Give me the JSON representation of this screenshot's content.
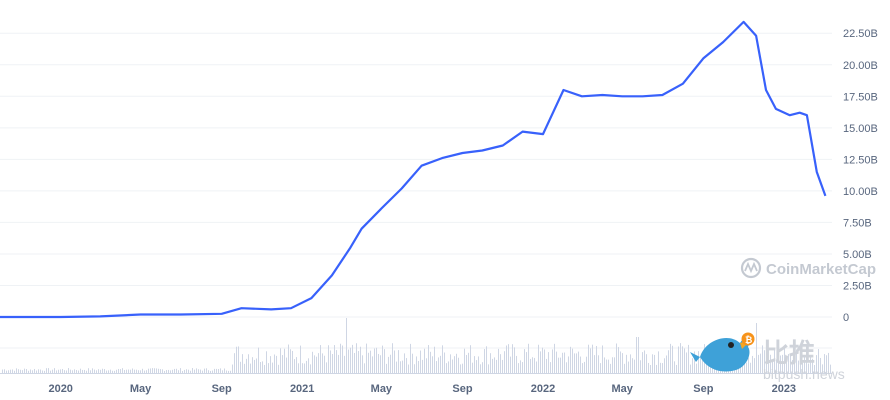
{
  "chart_data": {
    "type": "line",
    "y_ticks": [
      "22.50B",
      "20.00B",
      "17.50B",
      "15.00B",
      "12.50B",
      "10.00B",
      "7.50B",
      "5.00B",
      "2.50B",
      "0"
    ],
    "y_tick_values": [
      22.5,
      20,
      17.5,
      15,
      12.5,
      10,
      7.5,
      5,
      2.5,
      0
    ],
    "ylim": [
      0,
      24.5
    ],
    "x_ticks": [
      {
        "label": "2020",
        "date": "2020-01-01"
      },
      {
        "label": "May",
        "date": "2020-05-01"
      },
      {
        "label": "Sep",
        "date": "2020-09-01"
      },
      {
        "label": "2021",
        "date": "2021-01-01"
      },
      {
        "label": "May",
        "date": "2021-05-01"
      },
      {
        "label": "Sep",
        "date": "2021-09-01"
      },
      {
        "label": "2022",
        "date": "2022-01-01"
      },
      {
        "label": "May",
        "date": "2022-05-01"
      },
      {
        "label": "Sep",
        "date": "2022-09-01"
      },
      {
        "label": "2023",
        "date": "2023-01-01"
      }
    ],
    "xlim": [
      "2019-10-01",
      "2023-03-15"
    ],
    "series": [
      {
        "color": "#3861fb",
        "points": [
          [
            "2019-10-01",
            0.0
          ],
          [
            "2020-01-01",
            0.0
          ],
          [
            "2020-03-01",
            0.05
          ],
          [
            "2020-05-01",
            0.2
          ],
          [
            "2020-07-01",
            0.2
          ],
          [
            "2020-09-01",
            0.25
          ],
          [
            "2020-10-01",
            0.7
          ],
          [
            "2020-11-15",
            0.6
          ],
          [
            "2020-12-15",
            0.7
          ],
          [
            "2021-01-15",
            1.5
          ],
          [
            "2021-02-15",
            3.3
          ],
          [
            "2021-03-15",
            5.5
          ],
          [
            "2021-04-01",
            7.0
          ],
          [
            "2021-05-01",
            8.6
          ],
          [
            "2021-06-01",
            10.2
          ],
          [
            "2021-07-01",
            12.0
          ],
          [
            "2021-08-01",
            12.6
          ],
          [
            "2021-09-01",
            13.0
          ],
          [
            "2021-10-01",
            13.2
          ],
          [
            "2021-11-01",
            13.6
          ],
          [
            "2021-12-01",
            14.7
          ],
          [
            "2022-01-01",
            14.5
          ],
          [
            "2022-02-01",
            18.0
          ],
          [
            "2022-03-01",
            17.5
          ],
          [
            "2022-04-01",
            17.6
          ],
          [
            "2022-05-01",
            17.5
          ],
          [
            "2022-06-01",
            17.5
          ],
          [
            "2022-07-01",
            17.6
          ],
          [
            "2022-08-01",
            18.5
          ],
          [
            "2022-09-01",
            20.5
          ],
          [
            "2022-10-01",
            21.8
          ],
          [
            "2022-11-01",
            23.4
          ],
          [
            "2022-11-20",
            22.3
          ],
          [
            "2022-12-05",
            18.0
          ],
          [
            "2022-12-20",
            16.5
          ],
          [
            "2023-01-10",
            16.0
          ],
          [
            "2023-01-25",
            16.2
          ],
          [
            "2023-02-05",
            16.0
          ],
          [
            "2023-02-20",
            11.5
          ],
          [
            "2023-03-05",
            9.6
          ]
        ]
      }
    ],
    "volume_bars": true,
    "grid": true,
    "watermark": "CoinMarketCap",
    "logo_text": "比推",
    "logo_subtext": "bitpush.news"
  }
}
